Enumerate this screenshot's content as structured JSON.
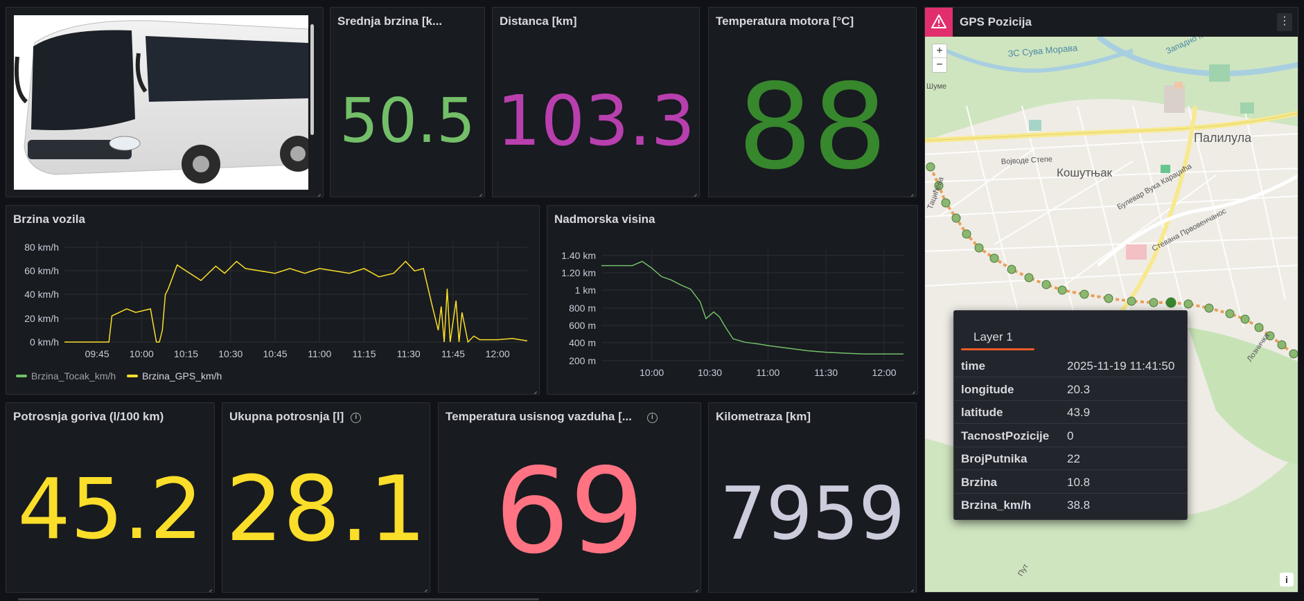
{
  "panels": {
    "srednja_brzina": {
      "title": "Srednja brzina [k...",
      "value": "50.5",
      "color": "#73bf69"
    },
    "distanca": {
      "title": "Distanca [km]",
      "value": "103.3",
      "color": "#b83fae"
    },
    "temp_motora": {
      "title": "Temperatura motora [°C]",
      "value": "88",
      "color": "#37872d"
    },
    "potrosnja": {
      "title": "Potrosnja goriva (l/100 km)",
      "value": "45.2",
      "color": "#fade2a"
    },
    "ukupna": {
      "title": "Ukupna potrosnja [l]",
      "value": "28.1",
      "color": "#fade2a"
    },
    "temp_usisnog": {
      "title": "Temperatura usisnog vazduha [...",
      "value": "69",
      "color": "#ff7383"
    },
    "kilometraza": {
      "title": "Kilometraza [km]",
      "value": "7959",
      "color": "#ccccdc"
    }
  },
  "gps": {
    "title": "GPS Pozicija",
    "warning_icon": "warning-triangle-icon",
    "zoom_in": "+",
    "zoom_out": "−",
    "map_labels": [
      "ЗС Сува Морава",
      "Западно Морава",
      "Војводе Степе",
      "Палилула",
      "Кошутњак",
      "Булевар Вука Караџића",
      "Стевана Првовенчанос",
      "Лозничка",
      "Тацићева",
      "Шуме",
      "Пут"
    ],
    "attribution": "i",
    "tooltip": {
      "layer": "Layer 1",
      "rows": [
        {
          "k": "time",
          "v": "2025-11-19 11:41:50"
        },
        {
          "k": "longitude",
          "v": "20.3"
        },
        {
          "k": "latitude",
          "v": "43.9"
        },
        {
          "k": "TacnostPozicije",
          "v": "0"
        },
        {
          "k": "BrojPutnika",
          "v": "22"
        },
        {
          "k": "Brzina",
          "v": "10.8"
        },
        {
          "k": "Brzina_km/h",
          "v": "38.8"
        }
      ]
    }
  },
  "chart_data": [
    {
      "type": "line",
      "title": "Brzina vozila",
      "y_ticks": [
        "80 km/h",
        "60 km/h",
        "40 km/h",
        "20 km/h",
        "0 km/h"
      ],
      "ylim": [
        0,
        80
      ],
      "x_ticks": [
        "09:45",
        "10:00",
        "10:15",
        "10:30",
        "10:45",
        "11:00",
        "11:15",
        "11:30",
        "11:45",
        "12:00"
      ],
      "xlim_minutes": [
        "09:34",
        "12:10"
      ],
      "grid": true,
      "legend_position": "bottom-left",
      "series": [
        {
          "name": "Brzina_Tocak_km/h",
          "color": "#73bf69",
          "values": []
        },
        {
          "name": "Brzina_GPS_km/h",
          "color": "#fade2a",
          "x": [
            "09:34",
            "09:49",
            "09:50",
            "09:55",
            "09:58",
            "10:03",
            "10:05",
            "10:06",
            "10:07",
            "10:08",
            "10:09",
            "10:12",
            "10:15",
            "10:20",
            "10:25",
            "10:28",
            "10:32",
            "10:35",
            "10:40",
            "10:45",
            "10:50",
            "10:55",
            "11:00",
            "11:05",
            "11:10",
            "11:15",
            "11:20",
            "11:25",
            "11:29",
            "11:32",
            "11:35",
            "11:38",
            "11:40",
            "11:41",
            "11:42",
            "11:43",
            "11:44",
            "11:46",
            "11:47",
            "11:48",
            "11:50",
            "11:52",
            "11:54",
            "12:00",
            "12:05",
            "12:10"
          ],
          "values": [
            0,
            0,
            22,
            28,
            25,
            28,
            0,
            0,
            10,
            40,
            45,
            65,
            60,
            52,
            64,
            58,
            68,
            62,
            60,
            58,
            62,
            58,
            62,
            60,
            58,
            62,
            55,
            58,
            68,
            60,
            62,
            30,
            10,
            30,
            0,
            45,
            0,
            35,
            0,
            25,
            0,
            5,
            2,
            2,
            3,
            1
          ]
        }
      ]
    },
    {
      "type": "line",
      "title": "Nadmorska visina",
      "y_ticks": [
        "1.40 km",
        "1.20 km",
        "1 km",
        "800 m",
        "600 m",
        "400 m",
        "200 m"
      ],
      "ylim": [
        200,
        1450
      ],
      "x_ticks": [
        "10:00",
        "10:30",
        "11:00",
        "11:30",
        "12:00"
      ],
      "xlim_minutes": [
        "09:34",
        "12:10"
      ],
      "grid": true,
      "series": [
        {
          "name": "",
          "color": "#73bf69",
          "x": [
            "09:34",
            "09:50",
            "09:55",
            "10:00",
            "10:05",
            "10:10",
            "10:15",
            "10:20",
            "10:25",
            "10:28",
            "10:32",
            "10:35",
            "10:38",
            "10:42",
            "10:48",
            "10:55",
            "11:00",
            "11:10",
            "11:20",
            "11:30",
            "11:40",
            "11:50",
            "12:00",
            "12:10"
          ],
          "values": [
            1330,
            1330,
            1380,
            1300,
            1200,
            1160,
            1100,
            1050,
            900,
            700,
            780,
            720,
            600,
            460,
            420,
            400,
            380,
            350,
            320,
            300,
            290,
            280,
            280,
            280
          ]
        }
      ]
    }
  ]
}
